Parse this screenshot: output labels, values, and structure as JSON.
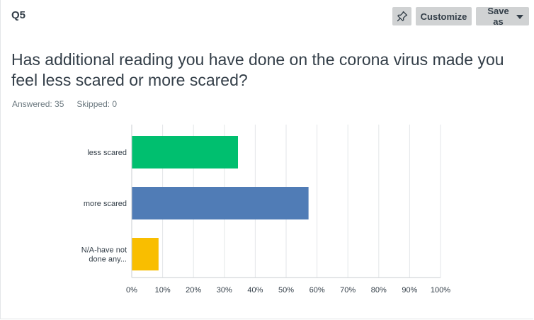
{
  "question_number": "Q5",
  "toolbar": {
    "pin_icon": "pin-icon",
    "customize_label": "Customize",
    "save_as_label": "Save as"
  },
  "question_title": "Has additional reading you have done on the corona virus made you feel less scared or more scared?",
  "stats": {
    "answered": "Answered: 35",
    "skipped": "Skipped: 0"
  },
  "colors": {
    "grid": "#e3e6e8",
    "axis": "#c8cdd0",
    "tick_text": "#333e48"
  },
  "chart_data": {
    "type": "bar",
    "orientation": "horizontal",
    "categories": [
      "less scared",
      "more scared",
      "N/A-have not done any..."
    ],
    "category_lines": [
      [
        "less scared"
      ],
      [
        "more scared"
      ],
      [
        "N/A-have not",
        "done any..."
      ]
    ],
    "values": [
      34.29,
      57.14,
      8.57
    ],
    "colors": [
      "#00bf6f",
      "#507cb6",
      "#f9be00"
    ],
    "xlim": [
      0,
      100
    ],
    "x_ticks": [
      "0%",
      "10%",
      "20%",
      "30%",
      "40%",
      "50%",
      "60%",
      "70%",
      "80%",
      "90%",
      "100%"
    ],
    "grid": true
  }
}
